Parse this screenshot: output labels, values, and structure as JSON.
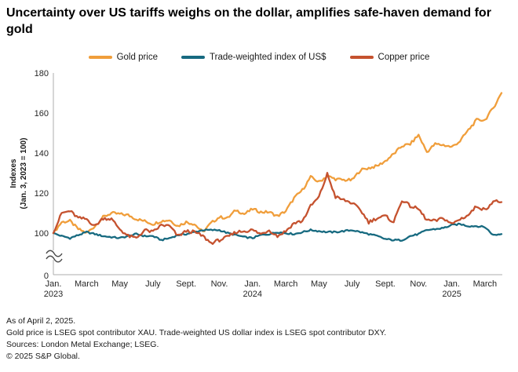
{
  "title": "Uncertainty over US tariffs weighs on the dollar, amplifies safe-haven demand for gold",
  "y_axis": {
    "title_line1": "Indexes",
    "title_line2": "(Jan. 3, 2023 = 100)",
    "ticks": [
      {
        "label": "180",
        "value": 180
      },
      {
        "label": "160",
        "value": 160
      },
      {
        "label": "140",
        "value": 140
      },
      {
        "label": "120",
        "value": 120
      },
      {
        "label": "100",
        "value": 100
      },
      {
        "label": "0",
        "value": 0
      }
    ],
    "has_axis_break": true
  },
  "x_axis": {
    "ticks": [
      {
        "label": "Jan.",
        "year": "2023",
        "m": 0
      },
      {
        "label": "March",
        "year": "",
        "m": 2
      },
      {
        "label": "May",
        "year": "",
        "m": 4
      },
      {
        "label": "July",
        "year": "",
        "m": 6
      },
      {
        "label": "Sept.",
        "year": "",
        "m": 8
      },
      {
        "label": "Nov.",
        "year": "",
        "m": 10
      },
      {
        "label": "Jan.",
        "year": "2024",
        "m": 12
      },
      {
        "label": "March",
        "year": "",
        "m": 14
      },
      {
        "label": "May",
        "year": "",
        "m": 16
      },
      {
        "label": "July",
        "year": "",
        "m": 18
      },
      {
        "label": "Sept.",
        "year": "",
        "m": 20
      },
      {
        "label": "Nov.",
        "year": "",
        "m": 22
      },
      {
        "label": "Jan.",
        "year": "2025",
        "m": 24
      },
      {
        "label": "March",
        "year": "",
        "m": 26
      }
    ]
  },
  "chart_data": {
    "type": "line",
    "title": "Uncertainty over US tariffs weighs on the dollar, amplifies safe-haven demand for gold",
    "ylabel": "Indexes (Jan. 3, 2023 = 100)",
    "ylim": [
      88,
      180
    ],
    "axis_break_to_zero": true,
    "legend_position": "top",
    "x_unit": "months since Jan. 3, 2023 (anchor points every half month, Jan. 2023 through Apr. 2, 2025)",
    "x_start_month": 0,
    "x_end_month": 27,
    "series": [
      {
        "name": "Gold price",
        "slug": "gold-price",
        "color": "#F09E3B",
        "values": [
          100,
          105.5,
          106,
          102,
          100,
          103.5,
          108,
          110,
          109.5,
          109,
          107,
          106,
          104.5,
          106,
          106.5,
          103.5,
          105.5,
          104.5,
          100.5,
          105,
          108,
          107.5,
          111.5,
          109.5,
          112,
          110.5,
          110.5,
          108.5,
          111,
          117.5,
          121.5,
          128,
          125.5,
          128.5,
          127,
          126.5,
          126.5,
          131.5,
          132.5,
          133.5,
          136,
          139.5,
          143.5,
          144.5,
          149,
          140.5,
          144.5,
          144,
          143,
          146,
          151.5,
          156.5,
          156.5,
          162.5,
          170
        ]
      },
      {
        "name": "Trade-weighted index of US$",
        "slug": "us-dollar-index",
        "color": "#176A80",
        "values": [
          100,
          98.5,
          97.5,
          99,
          100.5,
          99.5,
          98.5,
          98,
          97.5,
          98.5,
          99.5,
          98.5,
          98.5,
          96.5,
          97.5,
          99,
          99.5,
          100.5,
          101.5,
          101.5,
          101.5,
          100,
          99,
          98,
          97.5,
          99,
          99.5,
          100.5,
          100,
          99.5,
          100.5,
          101.5,
          101,
          100.5,
          100.5,
          101,
          101.5,
          100.5,
          99.5,
          98.5,
          97,
          96.5,
          96.5,
          98.5,
          99.5,
          101.5,
          102,
          102.5,
          104,
          104.5,
          103.5,
          103.5,
          103,
          99,
          99.5
        ]
      },
      {
        "name": "Copper price",
        "slug": "copper-price",
        "color": "#C5522F",
        "values": [
          100,
          110,
          111,
          107.5,
          107,
          103.5,
          107.5,
          107,
          102,
          98.5,
          97.5,
          101.5,
          100.5,
          104,
          103.5,
          98.5,
          101,
          100.5,
          98.5,
          95,
          96.5,
          98,
          100.5,
          101,
          101.5,
          99.5,
          101.5,
          98.5,
          101,
          105,
          106,
          113.5,
          118,
          129.5,
          118,
          116.5,
          115,
          111.5,
          105.5,
          107.5,
          108.5,
          105.5,
          116.5,
          113.5,
          112,
          106.5,
          106,
          107.5,
          104.5,
          107,
          109,
          113.5,
          111.5,
          116,
          115.5
        ]
      }
    ]
  },
  "footer": {
    "asof": "As of April 2, 2025.",
    "definitions": "Gold price is LSEG spot contributor XAU. Trade-weighted US dollar index is LSEG spot contributor DXY.",
    "sources": "Sources: London Metal Exchange; LSEG.",
    "copyright": "© 2025 S&P Global."
  }
}
